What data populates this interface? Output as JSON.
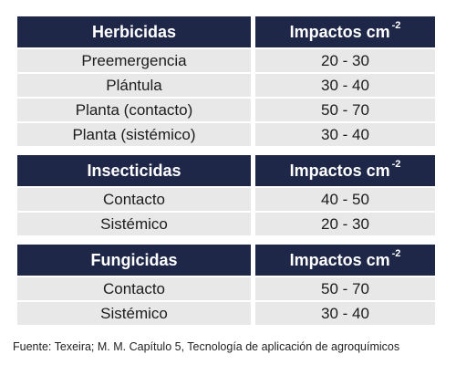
{
  "sections": [
    {
      "category": "Herbicidas",
      "unit_label": "Impactos cm",
      "unit_exp": "-2",
      "rows": [
        {
          "type": "Preemergencia",
          "range": "20 - 30"
        },
        {
          "type": "Plántula",
          "range": "30 - 40"
        },
        {
          "type": "Planta (contacto)",
          "range": "50 - 70"
        },
        {
          "type": "Planta (sistémico)",
          "range": "30 - 40"
        }
      ]
    },
    {
      "category": "Insecticidas",
      "unit_label": "Impactos cm",
      "unit_exp": "-2",
      "rows": [
        {
          "type": "Contacto",
          "range": "40 - 50"
        },
        {
          "type": "Sistémico",
          "range": "20 - 30"
        }
      ]
    },
    {
      "category": "Fungicidas",
      "unit_label": "Impactos cm",
      "unit_exp": "-2",
      "rows": [
        {
          "type": "Contacto",
          "range": "50 - 70"
        },
        {
          "type": "Sistémico",
          "range": "30 - 40"
        }
      ]
    }
  ],
  "source": "Fuente: Texeira; M. M. Capítulo 5, Tecnología de aplicación de agroquímicos",
  "colors": {
    "header_bg": "#1f2748",
    "row_bg": "#e8e8e8"
  }
}
